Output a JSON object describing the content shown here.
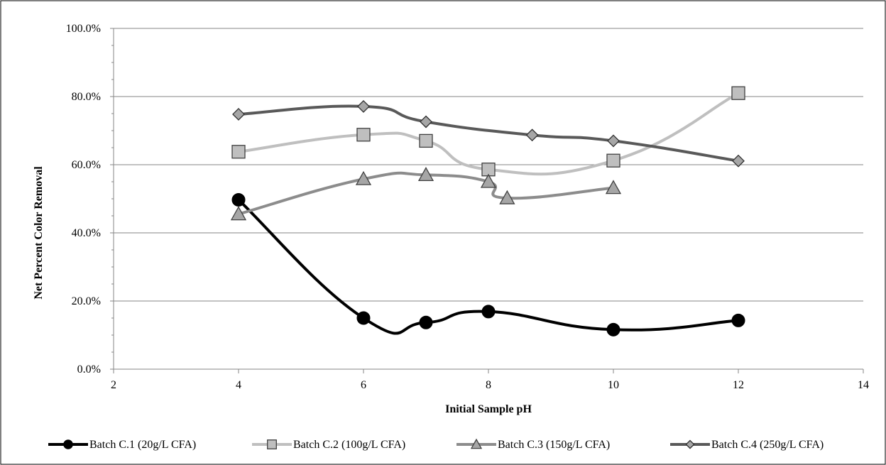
{
  "chart_data": {
    "type": "line",
    "title": "",
    "xlabel": "Initial Sample pH",
    "ylabel": "Net Percent Color Removal",
    "xlim": [
      2,
      14
    ],
    "ylim": [
      0,
      100
    ],
    "x_ticks": [
      2,
      4,
      6,
      8,
      10,
      12,
      14
    ],
    "y_ticks": [
      0,
      20,
      40,
      60,
      80,
      100
    ],
    "y_tick_labels": [
      "0.0%",
      "20.0%",
      "40.0%",
      "60.0%",
      "80.0%",
      "100.0%"
    ],
    "grid": "horizontal",
    "legend_position": "bottom",
    "smoothed_lines": true,
    "series": [
      {
        "name": "Batch C.1 (20g/L CFA)",
        "color": "#000000",
        "marker": "circle",
        "x": [
          4,
          6,
          7,
          8,
          10,
          12
        ],
        "y": [
          49.7,
          15.0,
          13.7,
          16.9,
          11.6,
          14.3
        ]
      },
      {
        "name": "Batch C.2 (100g/L CFA)",
        "color": "#bfbfbf",
        "marker": "square",
        "x": [
          4,
          6,
          7,
          8,
          10,
          12
        ],
        "y": [
          63.8,
          68.8,
          67.0,
          58.6,
          61.2,
          81.0
        ]
      },
      {
        "name": "Batch C.3 (150g/L CFA)",
        "color": "#8c8c8c",
        "marker": "triangle",
        "x": [
          4,
          6,
          7,
          8,
          8.3,
          10
        ],
        "y": [
          45.5,
          55.8,
          57.0,
          55.0,
          50.2,
          53.2
        ]
      },
      {
        "name": "Batch C.4 (250g/L CFA)",
        "color": "#595959",
        "marker": "diamond",
        "x": [
          4,
          6,
          7,
          8.7,
          10,
          12
        ],
        "y": [
          74.8,
          77.1,
          72.6,
          68.7,
          67.0,
          61.1
        ]
      }
    ]
  }
}
